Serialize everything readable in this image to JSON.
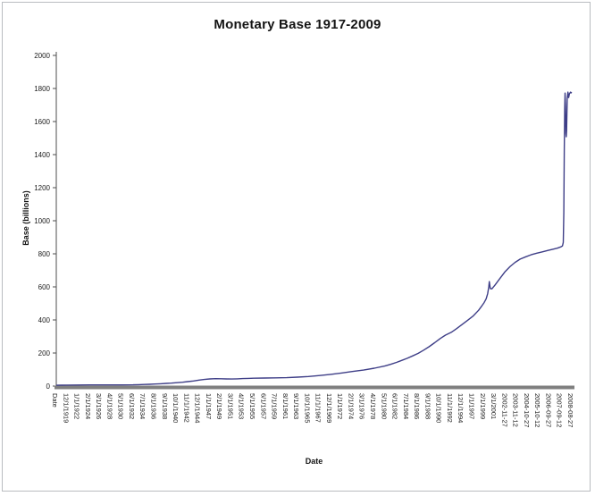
{
  "frame": {
    "background": "#ffffff",
    "border_color": "#b9bcc0"
  },
  "chart_data": {
    "type": "line",
    "title": "Monetary Base 1917-2009",
    "xlabel": "Date",
    "ylabel": "Base (billions)",
    "ylim": [
      0,
      2000
    ],
    "yticks": [
      0,
      200,
      400,
      600,
      800,
      1000,
      1200,
      1400,
      1600,
      1800,
      2000
    ],
    "grid": false,
    "legend": "none",
    "line_color": "#3e3e87",
    "axis_color": "#7f7f7f",
    "y_axis_color": "#4d4d4d",
    "text_color": "#1a1a1a",
    "xtick_labels": [
      "Date",
      "12/1/1919",
      "1/1/1922",
      "2/1/1924",
      "3/1/1926",
      "4/1/1928",
      "5/1/1930",
      "6/1/1932",
      "7/1/1934",
      "8/1/1936",
      "9/1/1938",
      "10/1/1940",
      "11/1/1942",
      "12/1/1944",
      "1/1/1947",
      "2/1/1949",
      "3/1/1951",
      "4/1/1953",
      "5/1/1955",
      "6/1/1957",
      "7/1/1959",
      "8/1/1961",
      "9/1/1963",
      "10/1/1965",
      "11/1/1967",
      "12/1/1969",
      "1/1/1972",
      "2/1/1974",
      "3/1/1976",
      "4/1/1978",
      "5/1/1980",
      "6/1/1982",
      "7/1/1984",
      "8/1/1986",
      "9/1/1988",
      "10/1/1990",
      "11/1/1992",
      "12/1/1994",
      "1/1/1997",
      "2/1/1999",
      "3/1/2001",
      "2002-11-27",
      "2003-11-12",
      "2004-10-27",
      "2005-10-12",
      "2006-09-27",
      "2007-09-12",
      "2008-08-27"
    ],
    "series": [
      {
        "name": "Monetary Base",
        "points": [
          [
            0.0,
            5
          ],
          [
            0.01,
            5.5
          ],
          [
            0.021,
            6
          ],
          [
            0.042,
            6.5
          ],
          [
            0.064,
            7
          ],
          [
            0.085,
            7
          ],
          [
            0.106,
            7
          ],
          [
            0.128,
            7
          ],
          [
            0.149,
            7.5
          ],
          [
            0.16,
            8.5
          ],
          [
            0.17,
            9.5
          ],
          [
            0.181,
            11
          ],
          [
            0.191,
            12.5
          ],
          [
            0.202,
            14
          ],
          [
            0.213,
            16
          ],
          [
            0.223,
            18
          ],
          [
            0.234,
            20.5
          ],
          [
            0.245,
            23
          ],
          [
            0.255,
            27
          ],
          [
            0.266,
            31
          ],
          [
            0.277,
            36
          ],
          [
            0.287,
            40
          ],
          [
            0.298,
            43
          ],
          [
            0.309,
            45
          ],
          [
            0.319,
            44.5
          ],
          [
            0.33,
            43
          ],
          [
            0.34,
            42.5
          ],
          [
            0.351,
            44
          ],
          [
            0.362,
            45.5
          ],
          [
            0.372,
            46.5
          ],
          [
            0.383,
            47.5
          ],
          [
            0.404,
            48.5
          ],
          [
            0.426,
            49.5
          ],
          [
            0.447,
            51
          ],
          [
            0.468,
            54
          ],
          [
            0.489,
            58
          ],
          [
            0.511,
            64
          ],
          [
            0.532,
            71
          ],
          [
            0.553,
            79
          ],
          [
            0.574,
            88
          ],
          [
            0.596,
            97
          ],
          [
            0.617,
            108
          ],
          [
            0.638,
            122
          ],
          [
            0.649,
            132
          ],
          [
            0.66,
            143
          ],
          [
            0.67,
            155
          ],
          [
            0.681,
            168
          ],
          [
            0.691,
            182
          ],
          [
            0.702,
            198
          ],
          [
            0.713,
            218
          ],
          [
            0.723,
            238
          ],
          [
            0.734,
            262
          ],
          [
            0.745,
            288
          ],
          [
            0.755,
            308
          ],
          [
            0.766,
            325
          ],
          [
            0.777,
            348
          ],
          [
            0.787,
            372
          ],
          [
            0.798,
            398
          ],
          [
            0.809,
            425
          ],
          [
            0.819,
            458
          ],
          [
            0.826,
            487
          ],
          [
            0.83,
            505
          ],
          [
            0.834,
            528
          ],
          [
            0.837,
            560
          ],
          [
            0.839,
            600
          ],
          [
            0.84,
            632
          ],
          [
            0.842,
            590
          ],
          [
            0.845,
            588
          ],
          [
            0.851,
            610
          ],
          [
            0.86,
            648
          ],
          [
            0.87,
            690
          ],
          [
            0.88,
            722
          ],
          [
            0.89,
            748
          ],
          [
            0.9,
            768
          ],
          [
            0.911,
            782
          ],
          [
            0.921,
            794
          ],
          [
            0.932,
            804
          ],
          [
            0.943,
            812
          ],
          [
            0.953,
            820
          ],
          [
            0.964,
            828
          ],
          [
            0.972,
            834
          ],
          [
            0.979,
            842
          ],
          [
            0.982,
            848
          ],
          [
            0.9835,
            870
          ],
          [
            0.9845,
            1050
          ],
          [
            0.9855,
            1420
          ],
          [
            0.9863,
            1680
          ],
          [
            0.987,
            1772
          ],
          [
            0.9878,
            1690
          ],
          [
            0.9885,
            1530
          ],
          [
            0.9893,
            1508
          ],
          [
            0.99,
            1545
          ],
          [
            0.9912,
            1740
          ],
          [
            0.9925,
            1778
          ],
          [
            0.994,
            1745
          ],
          [
            0.9955,
            1768
          ],
          [
            0.9975,
            1778
          ],
          [
            1.0,
            1772
          ]
        ]
      }
    ]
  }
}
